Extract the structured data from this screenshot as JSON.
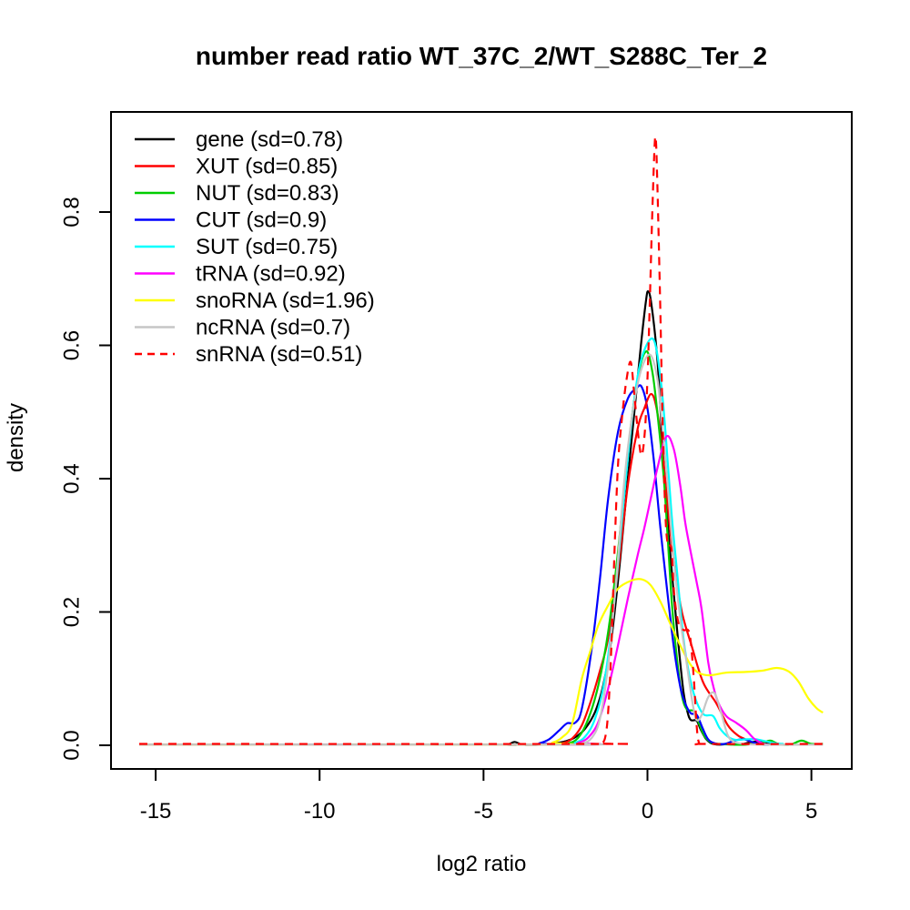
{
  "chart_data": {
    "type": "line",
    "subtype": "density",
    "title": "number read ratio WT_37C_2/WT_S288C_Ter_2",
    "xlabel": "log2 ratio",
    "ylabel": "density",
    "grid": false,
    "legend_position": "top-left",
    "xlim": [
      -16.4,
      6.2
    ],
    "ylim": [
      -0.036,
      0.95
    ],
    "x_ticks": [
      {
        "v": -15,
        "label": "-15"
      },
      {
        "v": -10,
        "label": "-10"
      },
      {
        "v": -5,
        "label": "-5"
      },
      {
        "v": 0,
        "label": "0"
      },
      {
        "v": 5,
        "label": "5"
      }
    ],
    "y_ticks": [
      {
        "v": 0.0,
        "label": "0.0"
      },
      {
        "v": 0.2,
        "label": "0.2"
      },
      {
        "v": 0.4,
        "label": "0.4"
      },
      {
        "v": 0.6,
        "label": "0.6"
      },
      {
        "v": 0.8,
        "label": "0.8"
      }
    ],
    "series": [
      {
        "name": "gene",
        "sd": 0.78,
        "label": "gene (sd=0.78)",
        "color": "#000000",
        "dash": false,
        "points": [
          [
            -15.5,
            0.001
          ],
          [
            -5.0,
            0.001
          ],
          [
            -4.3,
            0.001
          ],
          [
            -4.05,
            0.005
          ],
          [
            -3.8,
            0.001
          ],
          [
            -3.2,
            0.001
          ],
          [
            -2.8,
            0.003
          ],
          [
            -2.5,
            0.006
          ],
          [
            -2.2,
            0.012
          ],
          [
            -1.9,
            0.025
          ],
          [
            -1.6,
            0.05
          ],
          [
            -1.35,
            0.09
          ],
          [
            -1.1,
            0.16
          ],
          [
            -0.85,
            0.27
          ],
          [
            -0.6,
            0.4
          ],
          [
            -0.4,
            0.5
          ],
          [
            -0.2,
            0.6
          ],
          [
            -0.05,
            0.665
          ],
          [
            0.02,
            0.681
          ],
          [
            0.12,
            0.662
          ],
          [
            0.3,
            0.58
          ],
          [
            0.45,
            0.46
          ],
          [
            0.6,
            0.345
          ],
          [
            0.72,
            0.274
          ],
          [
            0.95,
            0.149
          ],
          [
            1.1,
            0.08
          ],
          [
            1.22,
            0.05
          ],
          [
            1.32,
            0.038
          ],
          [
            1.5,
            0.037
          ],
          [
            1.62,
            0.024
          ],
          [
            1.78,
            0.01
          ],
          [
            1.95,
            0.003
          ],
          [
            2.2,
            0.001
          ],
          [
            2.5,
            0.002
          ],
          [
            2.8,
            0.001
          ],
          [
            3.1,
            0.004
          ],
          [
            3.4,
            0.006
          ],
          [
            3.6,
            0.003
          ],
          [
            3.8,
            0.001
          ]
        ]
      },
      {
        "name": "XUT",
        "sd": 0.85,
        "label": "XUT (sd=0.85)",
        "color": "#FF0000",
        "dash": false,
        "points": [
          [
            -15.5,
            0.001
          ],
          [
            -3.0,
            0.001
          ],
          [
            -2.6,
            0.003
          ],
          [
            -2.3,
            0.01
          ],
          [
            -2.0,
            0.03
          ],
          [
            -1.7,
            0.07
          ],
          [
            -1.45,
            0.112
          ],
          [
            -1.2,
            0.16
          ],
          [
            -0.9,
            0.26
          ],
          [
            -0.6,
            0.39
          ],
          [
            -0.3,
            0.475
          ],
          [
            -0.1,
            0.505
          ],
          [
            0.12,
            0.527
          ],
          [
            0.3,
            0.5
          ],
          [
            0.5,
            0.42
          ],
          [
            0.7,
            0.32
          ],
          [
            0.85,
            0.262
          ],
          [
            1.05,
            0.2
          ],
          [
            1.35,
            0.149
          ],
          [
            1.7,
            0.094
          ],
          [
            2.1,
            0.063
          ],
          [
            2.45,
            0.03
          ],
          [
            2.75,
            0.015
          ],
          [
            2.95,
            0.01
          ],
          [
            3.2,
            0.004
          ],
          [
            3.5,
            0.002
          ],
          [
            3.7,
            0.001
          ]
        ]
      },
      {
        "name": "NUT",
        "sd": 0.83,
        "label": "NUT (sd=0.83)",
        "color": "#00CD00",
        "dash": false,
        "points": [
          [
            -15.5,
            0.001
          ],
          [
            -2.8,
            0.001
          ],
          [
            -2.4,
            0.003
          ],
          [
            -2.1,
            0.012
          ],
          [
            -1.8,
            0.04
          ],
          [
            -1.5,
            0.09
          ],
          [
            -1.2,
            0.17
          ],
          [
            -0.9,
            0.29
          ],
          [
            -0.6,
            0.44
          ],
          [
            -0.3,
            0.55
          ],
          [
            -0.04,
            0.591
          ],
          [
            0.15,
            0.56
          ],
          [
            0.3,
            0.5
          ],
          [
            0.5,
            0.4
          ],
          [
            0.62,
            0.31
          ],
          [
            0.75,
            0.21
          ],
          [
            0.9,
            0.13
          ],
          [
            1.05,
            0.075
          ],
          [
            1.2,
            0.054
          ],
          [
            1.42,
            0.051
          ],
          [
            1.58,
            0.032
          ],
          [
            1.75,
            0.013
          ],
          [
            1.95,
            0.004
          ],
          [
            2.2,
            0.002
          ],
          [
            2.6,
            0.001
          ],
          [
            3.0,
            0.001
          ],
          [
            3.5,
            0.004
          ],
          [
            3.75,
            0.007
          ],
          [
            4.0,
            0.002
          ],
          [
            4.35,
            0.001
          ],
          [
            4.7,
            0.007
          ],
          [
            5.0,
            0.002
          ],
          [
            5.35,
            0.002
          ]
        ]
      },
      {
        "name": "CUT",
        "sd": 0.9,
        "label": "CUT (sd=0.9)",
        "color": "#0000FF",
        "dash": false,
        "points": [
          [
            -15.5,
            0.001
          ],
          [
            -3.6,
            0.001
          ],
          [
            -3.3,
            0.003
          ],
          [
            -3.0,
            0.009
          ],
          [
            -2.7,
            0.022
          ],
          [
            -2.45,
            0.033
          ],
          [
            -2.2,
            0.034
          ],
          [
            -2.0,
            0.055
          ],
          [
            -1.7,
            0.145
          ],
          [
            -1.45,
            0.25
          ],
          [
            -1.2,
            0.37
          ],
          [
            -0.9,
            0.47
          ],
          [
            -0.6,
            0.52
          ],
          [
            -0.35,
            0.535
          ],
          [
            -0.18,
            0.538
          ],
          [
            0.0,
            0.505
          ],
          [
            0.2,
            0.425
          ],
          [
            0.38,
            0.333
          ],
          [
            0.55,
            0.255
          ],
          [
            0.8,
            0.149
          ],
          [
            1.0,
            0.088
          ],
          [
            1.15,
            0.063
          ],
          [
            1.32,
            0.048
          ],
          [
            1.5,
            0.046
          ],
          [
            1.68,
            0.026
          ],
          [
            1.85,
            0.009
          ],
          [
            2.05,
            0.003
          ],
          [
            2.35,
            0.002
          ],
          [
            2.65,
            0.007
          ],
          [
            2.95,
            0.009
          ],
          [
            3.25,
            0.004
          ],
          [
            3.55,
            0.001
          ],
          [
            3.7,
            0.001
          ]
        ]
      },
      {
        "name": "SUT",
        "sd": 0.75,
        "label": "SUT (sd=0.75)",
        "color": "#00FFFF",
        "dash": false,
        "points": [
          [
            -15.5,
            0.001
          ],
          [
            -2.6,
            0.001
          ],
          [
            -2.2,
            0.004
          ],
          [
            -1.9,
            0.013
          ],
          [
            -1.6,
            0.04
          ],
          [
            -1.3,
            0.1
          ],
          [
            -1.0,
            0.22
          ],
          [
            -0.7,
            0.38
          ],
          [
            -0.4,
            0.52
          ],
          [
            -0.15,
            0.585
          ],
          [
            0.18,
            0.609
          ],
          [
            0.4,
            0.55
          ],
          [
            0.55,
            0.47
          ],
          [
            0.73,
            0.35
          ],
          [
            0.9,
            0.262
          ],
          [
            1.1,
            0.16
          ],
          [
            1.3,
            0.1
          ],
          [
            1.5,
            0.065
          ],
          [
            1.72,
            0.046
          ],
          [
            2.0,
            0.044
          ],
          [
            2.2,
            0.026
          ],
          [
            2.45,
            0.013
          ],
          [
            2.7,
            0.008
          ],
          [
            3.0,
            0.009
          ],
          [
            3.3,
            0.009
          ],
          [
            3.6,
            0.006
          ],
          [
            3.9,
            0.003
          ],
          [
            4.15,
            0.002
          ]
        ]
      },
      {
        "name": "tRNA",
        "sd": 0.92,
        "label": "tRNA (sd=0.92)",
        "color": "#FF00FF",
        "dash": false,
        "points": [
          [
            -15.5,
            0.001
          ],
          [
            -2.5,
            0.001
          ],
          [
            -2.1,
            0.004
          ],
          [
            -1.8,
            0.012
          ],
          [
            -1.5,
            0.035
          ],
          [
            -1.2,
            0.085
          ],
          [
            -0.9,
            0.15
          ],
          [
            -0.6,
            0.22
          ],
          [
            -0.3,
            0.285
          ],
          [
            -0.1,
            0.325
          ],
          [
            0.1,
            0.37
          ],
          [
            0.3,
            0.415
          ],
          [
            0.57,
            0.463
          ],
          [
            0.8,
            0.445
          ],
          [
            1.0,
            0.39
          ],
          [
            1.15,
            0.335
          ],
          [
            1.3,
            0.295
          ],
          [
            1.5,
            0.245
          ],
          [
            1.65,
            0.205
          ],
          [
            1.85,
            0.125
          ],
          [
            2.0,
            0.09
          ],
          [
            2.15,
            0.065
          ],
          [
            2.4,
            0.044
          ],
          [
            2.7,
            0.034
          ],
          [
            3.0,
            0.023
          ],
          [
            3.25,
            0.01
          ],
          [
            3.5,
            0.003
          ],
          [
            3.65,
            0.001
          ]
        ]
      },
      {
        "name": "snoRNA",
        "sd": 1.96,
        "label": "snoRNA (sd=1.96)",
        "color": "#FFFF00",
        "dash": false,
        "points": [
          [
            -15.5,
            0.001
          ],
          [
            -3.3,
            0.001
          ],
          [
            -2.9,
            0.004
          ],
          [
            -2.6,
            0.012
          ],
          [
            -2.3,
            0.032
          ],
          [
            -2.0,
            0.1
          ],
          [
            -1.75,
            0.14
          ],
          [
            -1.5,
            0.18
          ],
          [
            -1.2,
            0.21
          ],
          [
            -0.9,
            0.235
          ],
          [
            -0.5,
            0.247
          ],
          [
            -0.18,
            0.249
          ],
          [
            0.1,
            0.24
          ],
          [
            0.4,
            0.215
          ],
          [
            0.7,
            0.182
          ],
          [
            1.0,
            0.15
          ],
          [
            1.3,
            0.122
          ],
          [
            1.55,
            0.109
          ],
          [
            1.9,
            0.105
          ],
          [
            2.4,
            0.109
          ],
          [
            3.0,
            0.11
          ],
          [
            3.5,
            0.112
          ],
          [
            3.95,
            0.116
          ],
          [
            4.3,
            0.111
          ],
          [
            4.6,
            0.096
          ],
          [
            4.9,
            0.071
          ],
          [
            5.15,
            0.056
          ],
          [
            5.35,
            0.049
          ]
        ]
      },
      {
        "name": "ncRNA",
        "sd": 0.7,
        "label": "ncRNA (sd=0.7)",
        "color": "#C6C6C6",
        "dash": false,
        "points": [
          [
            -15.5,
            0.001
          ],
          [
            -2.4,
            0.001
          ],
          [
            -2.0,
            0.003
          ],
          [
            -1.7,
            0.011
          ],
          [
            -1.45,
            0.04
          ],
          [
            -1.2,
            0.12
          ],
          [
            -0.95,
            0.25
          ],
          [
            -0.7,
            0.4
          ],
          [
            -0.45,
            0.5
          ],
          [
            -0.2,
            0.562
          ],
          [
            0.08,
            0.586
          ],
          [
            0.3,
            0.55
          ],
          [
            0.45,
            0.48
          ],
          [
            0.6,
            0.4
          ],
          [
            0.8,
            0.28
          ],
          [
            1.0,
            0.19
          ],
          [
            1.2,
            0.122
          ],
          [
            1.38,
            0.062
          ],
          [
            1.5,
            0.038
          ],
          [
            1.65,
            0.045
          ],
          [
            1.85,
            0.072
          ],
          [
            2.05,
            0.078
          ],
          [
            2.25,
            0.048
          ],
          [
            2.45,
            0.015
          ],
          [
            2.65,
            0.005
          ],
          [
            2.95,
            0.002
          ],
          [
            3.5,
            0.001
          ],
          [
            5.35,
            0.001
          ]
        ]
      },
      {
        "name": "snRNA",
        "sd": 0.51,
        "label": "snRNA (sd=0.51)",
        "color": "#FF0000",
        "dash": true,
        "points": [
          [
            -15.5,
            0.002
          ],
          [
            -1.6,
            0.002
          ],
          [
            -1.45,
            0.003
          ],
          [
            -1.3,
            0.01
          ],
          [
            -1.2,
            0.05
          ],
          [
            -1.1,
            0.15
          ],
          [
            -1.0,
            0.3
          ],
          [
            -0.9,
            0.42
          ],
          [
            -0.78,
            0.49
          ],
          [
            -0.65,
            0.545
          ],
          [
            -0.51,
            0.575
          ],
          [
            -0.4,
            0.525
          ],
          [
            -0.28,
            0.465
          ],
          [
            -0.18,
            0.435
          ],
          [
            -0.08,
            0.47
          ],
          [
            0.0,
            0.55
          ],
          [
            0.08,
            0.68
          ],
          [
            0.16,
            0.82
          ],
          [
            0.24,
            0.913
          ],
          [
            0.3,
            0.845
          ],
          [
            0.38,
            0.68
          ],
          [
            0.46,
            0.49
          ],
          [
            0.55,
            0.343
          ],
          [
            0.63,
            0.3
          ],
          [
            0.73,
            0.295
          ],
          [
            0.82,
            0.225
          ],
          [
            0.95,
            0.183
          ],
          [
            1.1,
            0.173
          ],
          [
            1.28,
            0.168
          ],
          [
            1.4,
            0.11
          ],
          [
            1.5,
            0.03
          ],
          [
            1.57,
            0.004
          ],
          [
            1.7,
            0.002
          ],
          [
            5.35,
            0.002
          ]
        ]
      }
    ]
  }
}
